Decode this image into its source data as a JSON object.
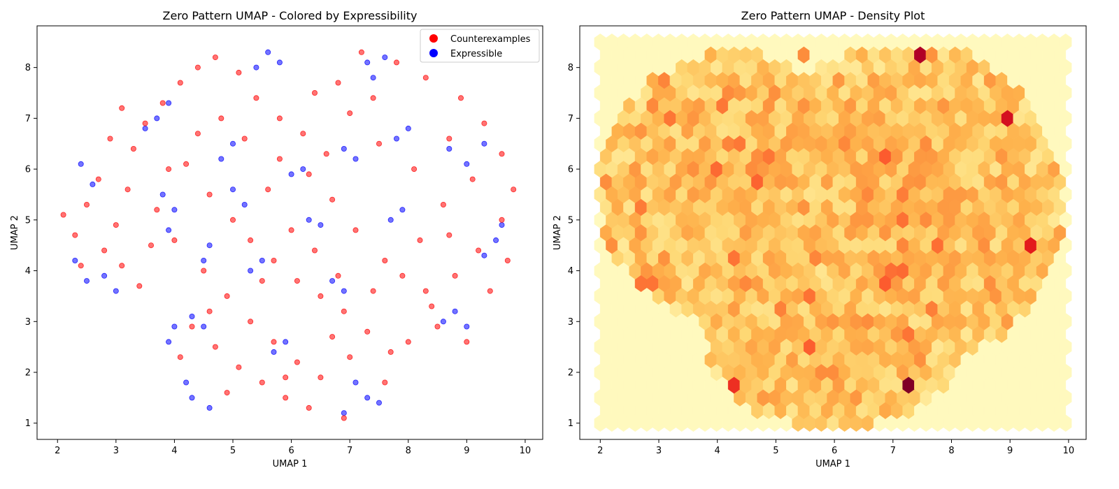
{
  "chart_data": [
    {
      "type": "scatter",
      "title": "Zero Pattern UMAP - Colored by Expressibility",
      "xlabel": "UMAP 1",
      "ylabel": "UMAP 2",
      "xlim": [
        1.65,
        10.3
      ],
      "ylim": [
        0.68,
        8.82
      ],
      "xticks": [
        "2",
        "3",
        "4",
        "5",
        "6",
        "7",
        "8",
        "9",
        "10"
      ],
      "yticks": [
        "1",
        "2",
        "3",
        "4",
        "5",
        "6",
        "7",
        "8"
      ],
      "legend_position": "top-right",
      "grid": false,
      "series": [
        {
          "name": "Counterexamples",
          "color": "#ff0000",
          "points": [
            [
              2.1,
              5.1
            ],
            [
              2.3,
              4.7
            ],
            [
              2.5,
              5.3
            ],
            [
              2.8,
              4.4
            ],
            [
              3.0,
              4.9
            ],
            [
              3.2,
              5.6
            ],
            [
              3.1,
              4.1
            ],
            [
              3.4,
              3.7
            ],
            [
              3.6,
              4.5
            ],
            [
              3.3,
              6.4
            ],
            [
              3.5,
              6.9
            ],
            [
              3.8,
              7.3
            ],
            [
              4.1,
              7.7
            ],
            [
              4.4,
              8.0
            ],
            [
              4.7,
              8.2
            ],
            [
              5.1,
              7.9
            ],
            [
              5.4,
              7.4
            ],
            [
              5.8,
              7.0
            ],
            [
              6.2,
              6.7
            ],
            [
              6.6,
              6.3
            ],
            [
              4.2,
              6.1
            ],
            [
              4.6,
              5.5
            ],
            [
              5.0,
              5.0
            ],
            [
              5.3,
              4.6
            ],
            [
              5.7,
              4.2
            ],
            [
              6.1,
              3.8
            ],
            [
              6.5,
              3.5
            ],
            [
              6.9,
              3.2
            ],
            [
              7.3,
              2.8
            ],
            [
              7.7,
              2.4
            ],
            [
              4.3,
              2.9
            ],
            [
              4.7,
              2.5
            ],
            [
              5.1,
              2.1
            ],
            [
              5.5,
              1.8
            ],
            [
              5.9,
              1.5
            ],
            [
              6.3,
              1.3
            ],
            [
              6.9,
              1.1
            ],
            [
              7.6,
              1.8
            ],
            [
              8.0,
              2.6
            ],
            [
              8.4,
              3.3
            ],
            [
              8.8,
              3.9
            ],
            [
              9.2,
              4.4
            ],
            [
              9.6,
              5.0
            ],
            [
              9.8,
              5.6
            ],
            [
              9.6,
              6.3
            ],
            [
              9.3,
              6.9
            ],
            [
              8.9,
              7.4
            ],
            [
              8.3,
              7.8
            ],
            [
              7.8,
              8.1
            ],
            [
              7.2,
              8.3
            ],
            [
              6.8,
              7.7
            ],
            [
              7.0,
              7.1
            ],
            [
              7.5,
              6.5
            ],
            [
              8.1,
              6.0
            ],
            [
              8.6,
              5.3
            ],
            [
              8.2,
              4.6
            ],
            [
              7.6,
              4.2
            ],
            [
              7.1,
              4.8
            ],
            [
              6.7,
              5.4
            ],
            [
              6.3,
              5.9
            ],
            [
              5.8,
              6.2
            ],
            [
              5.2,
              6.6
            ],
            [
              4.8,
              7.0
            ],
            [
              4.4,
              6.7
            ],
            [
              3.9,
              6.0
            ],
            [
              3.7,
              5.2
            ],
            [
              4.0,
              4.6
            ],
            [
              4.5,
              4.0
            ],
            [
              4.9,
              3.5
            ],
            [
              5.3,
              3.0
            ],
            [
              5.7,
              2.6
            ],
            [
              6.1,
              2.2
            ],
            [
              6.5,
              1.9
            ],
            [
              7.0,
              2.3
            ],
            [
              7.4,
              3.6
            ],
            [
              7.9,
              3.9
            ],
            [
              8.5,
              2.9
            ],
            [
              9.0,
              2.6
            ],
            [
              9.4,
              3.6
            ],
            [
              9.7,
              4.2
            ],
            [
              2.4,
              4.1
            ],
            [
              2.7,
              5.8
            ],
            [
              2.9,
              6.6
            ],
            [
              3.1,
              7.2
            ],
            [
              5.6,
              5.6
            ],
            [
              6.0,
              4.8
            ],
            [
              6.4,
              4.4
            ],
            [
              6.8,
              3.9
            ],
            [
              5.5,
              3.8
            ],
            [
              4.6,
              3.2
            ],
            [
              4.1,
              2.3
            ],
            [
              4.9,
              1.6
            ],
            [
              5.9,
              1.9
            ],
            [
              6.7,
              2.7
            ],
            [
              8.3,
              3.6
            ],
            [
              8.7,
              4.7
            ],
            [
              9.1,
              5.8
            ],
            [
              8.7,
              6.6
            ],
            [
              7.4,
              7.4
            ],
            [
              6.4,
              7.5
            ]
          ]
        },
        {
          "name": "Expressible",
          "color": "#0000ff",
          "points": [
            [
              2.4,
              6.1
            ],
            [
              2.6,
              5.7
            ],
            [
              2.3,
              4.2
            ],
            [
              2.5,
              3.8
            ],
            [
              2.8,
              3.9
            ],
            [
              3.0,
              3.6
            ],
            [
              3.7,
              7.0
            ],
            [
              3.9,
              7.3
            ],
            [
              3.5,
              6.8
            ],
            [
              3.8,
              5.5
            ],
            [
              4.0,
              5.2
            ],
            [
              3.9,
              4.8
            ],
            [
              4.6,
              4.5
            ],
            [
              4.5,
              4.2
            ],
            [
              4.8,
              6.2
            ],
            [
              5.0,
              6.5
            ],
            [
              5.6,
              8.3
            ],
            [
              5.4,
              8.0
            ],
            [
              5.8,
              8.1
            ],
            [
              7.3,
              8.1
            ],
            [
              7.6,
              8.2
            ],
            [
              7.4,
              7.8
            ],
            [
              8.7,
              6.4
            ],
            [
              9.0,
              6.1
            ],
            [
              9.3,
              6.5
            ],
            [
              9.5,
              4.6
            ],
            [
              9.6,
              4.9
            ],
            [
              9.3,
              4.3
            ],
            [
              8.8,
              3.2
            ],
            [
              9.0,
              2.9
            ],
            [
              8.6,
              3.0
            ],
            [
              7.3,
              1.5
            ],
            [
              7.5,
              1.4
            ],
            [
              7.1,
              1.8
            ],
            [
              6.9,
              1.2
            ],
            [
              4.2,
              1.8
            ],
            [
              4.3,
              1.5
            ],
            [
              4.6,
              1.3
            ],
            [
              4.0,
              2.9
            ],
            [
              3.9,
              2.6
            ],
            [
              5.7,
              2.4
            ],
            [
              5.9,
              2.6
            ],
            [
              6.3,
              5.0
            ],
            [
              6.5,
              4.9
            ],
            [
              6.7,
              3.8
            ],
            [
              6.9,
              3.6
            ],
            [
              5.5,
              4.2
            ],
            [
              5.3,
              4.0
            ],
            [
              6.0,
              5.9
            ],
            [
              6.2,
              6.0
            ],
            [
              6.9,
              6.4
            ],
            [
              7.1,
              6.2
            ],
            [
              7.7,
              5.0
            ],
            [
              7.9,
              5.2
            ],
            [
              7.8,
              6.6
            ],
            [
              8.0,
              6.8
            ],
            [
              4.3,
              3.1
            ],
            [
              4.5,
              2.9
            ],
            [
              5.2,
              5.3
            ],
            [
              5.0,
              5.6
            ]
          ]
        }
      ]
    },
    {
      "type": "heatmap",
      "title": "Zero Pattern UMAP - Density Plot",
      "xlabel": "UMAP 1",
      "ylabel": "UMAP 2",
      "xlim": [
        1.65,
        10.3
      ],
      "ylim": [
        0.68,
        8.82
      ],
      "xticks": [
        "2",
        "3",
        "4",
        "5",
        "6",
        "7",
        "8",
        "9",
        "10"
      ],
      "yticks": [
        "1",
        "2",
        "3",
        "4",
        "5",
        "6",
        "7",
        "8"
      ],
      "grid": false,
      "colormap": "YlOrRd",
      "hexbin": {
        "xmin": 2.0,
        "xmax": 9.95,
        "ymin": 1.0,
        "ymax": 8.5,
        "cols": 40,
        "rows": 30
      },
      "hotspots": [
        [
          7.3,
          1.7,
          1.0
        ],
        [
          7.4,
          8.3,
          0.9
        ],
        [
          3.9,
          5.9,
          0.9
        ],
        [
          8.9,
          7.0,
          0.8
        ],
        [
          9.3,
          4.6,
          0.75
        ],
        [
          4.3,
          1.7,
          0.7
        ],
        [
          6.9,
          3.8,
          0.6
        ],
        [
          6.8,
          6.2,
          0.6
        ],
        [
          2.8,
          3.7,
          0.55
        ],
        [
          7.2,
          2.8,
          0.55
        ],
        [
          6.0,
          2.0,
          0.5
        ],
        [
          5.5,
          8.3,
          0.5
        ],
        [
          3.9,
          4.9,
          0.45
        ],
        [
          4.3,
          3.2,
          0.45
        ],
        [
          7.8,
          3.8,
          0.45
        ],
        [
          3.6,
          6.3,
          0.4
        ],
        [
          8.6,
          3.0,
          0.4
        ],
        [
          6.3,
          1.6,
          0.4
        ]
      ]
    }
  ]
}
